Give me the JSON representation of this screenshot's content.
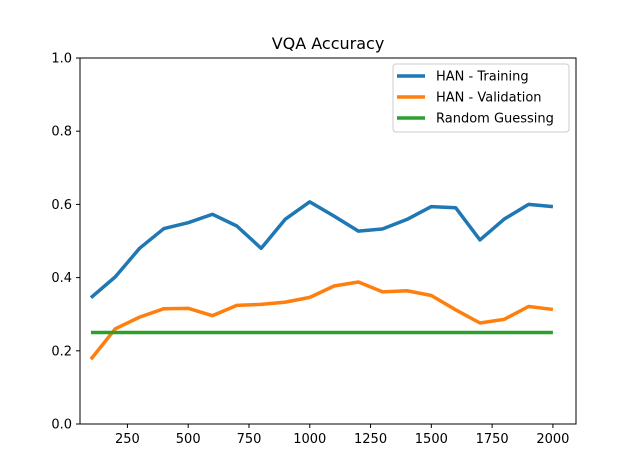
{
  "chart_data": {
    "type": "line",
    "title": "VQA Accuracy",
    "xlabel": "",
    "ylabel": "",
    "xlim": [
      55,
      2095
    ],
    "ylim": [
      0.0,
      1.0
    ],
    "xticks": [
      250,
      500,
      750,
      1000,
      1250,
      1500,
      1750,
      2000
    ],
    "yticks": [
      0.0,
      0.2,
      0.4,
      0.6,
      0.8,
      1.0
    ],
    "xtick_labels": [
      "250",
      "500",
      "750",
      "1000",
      "1250",
      "1500",
      "1750",
      "2000"
    ],
    "ytick_labels": [
      "0.0",
      "0.2",
      "0.4",
      "0.6",
      "0.8",
      "1.0"
    ],
    "grid": false,
    "legend_position": "top-right",
    "x": [
      100,
      200,
      300,
      400,
      500,
      600,
      700,
      800,
      900,
      1000,
      1100,
      1200,
      1300,
      1400,
      1500,
      1600,
      1700,
      1800,
      1900,
      2000
    ],
    "series": [
      {
        "name": "HAN - Training",
        "color": "#1f77b4",
        "values": [
          0.345,
          0.402,
          0.48,
          0.534,
          0.55,
          0.573,
          0.541,
          0.48,
          0.56,
          0.607,
          0.568,
          0.527,
          0.533,
          0.559,
          0.594,
          0.591,
          0.503,
          0.56,
          0.6,
          0.594
        ]
      },
      {
        "name": "HAN - Validation",
        "color": "#ff7f0e",
        "values": [
          0.177,
          0.26,
          0.292,
          0.315,
          0.316,
          0.296,
          0.324,
          0.327,
          0.333,
          0.346,
          0.377,
          0.388,
          0.361,
          0.364,
          0.351,
          0.312,
          0.276,
          0.286,
          0.321,
          0.313
        ]
      },
      {
        "name": "Random Guessing",
        "color": "#2ca02c",
        "values": [
          0.25,
          0.25,
          0.25,
          0.25,
          0.25,
          0.25,
          0.25,
          0.25,
          0.25,
          0.25,
          0.25,
          0.25,
          0.25,
          0.25,
          0.25,
          0.25,
          0.25,
          0.25,
          0.25,
          0.25
        ]
      }
    ]
  }
}
